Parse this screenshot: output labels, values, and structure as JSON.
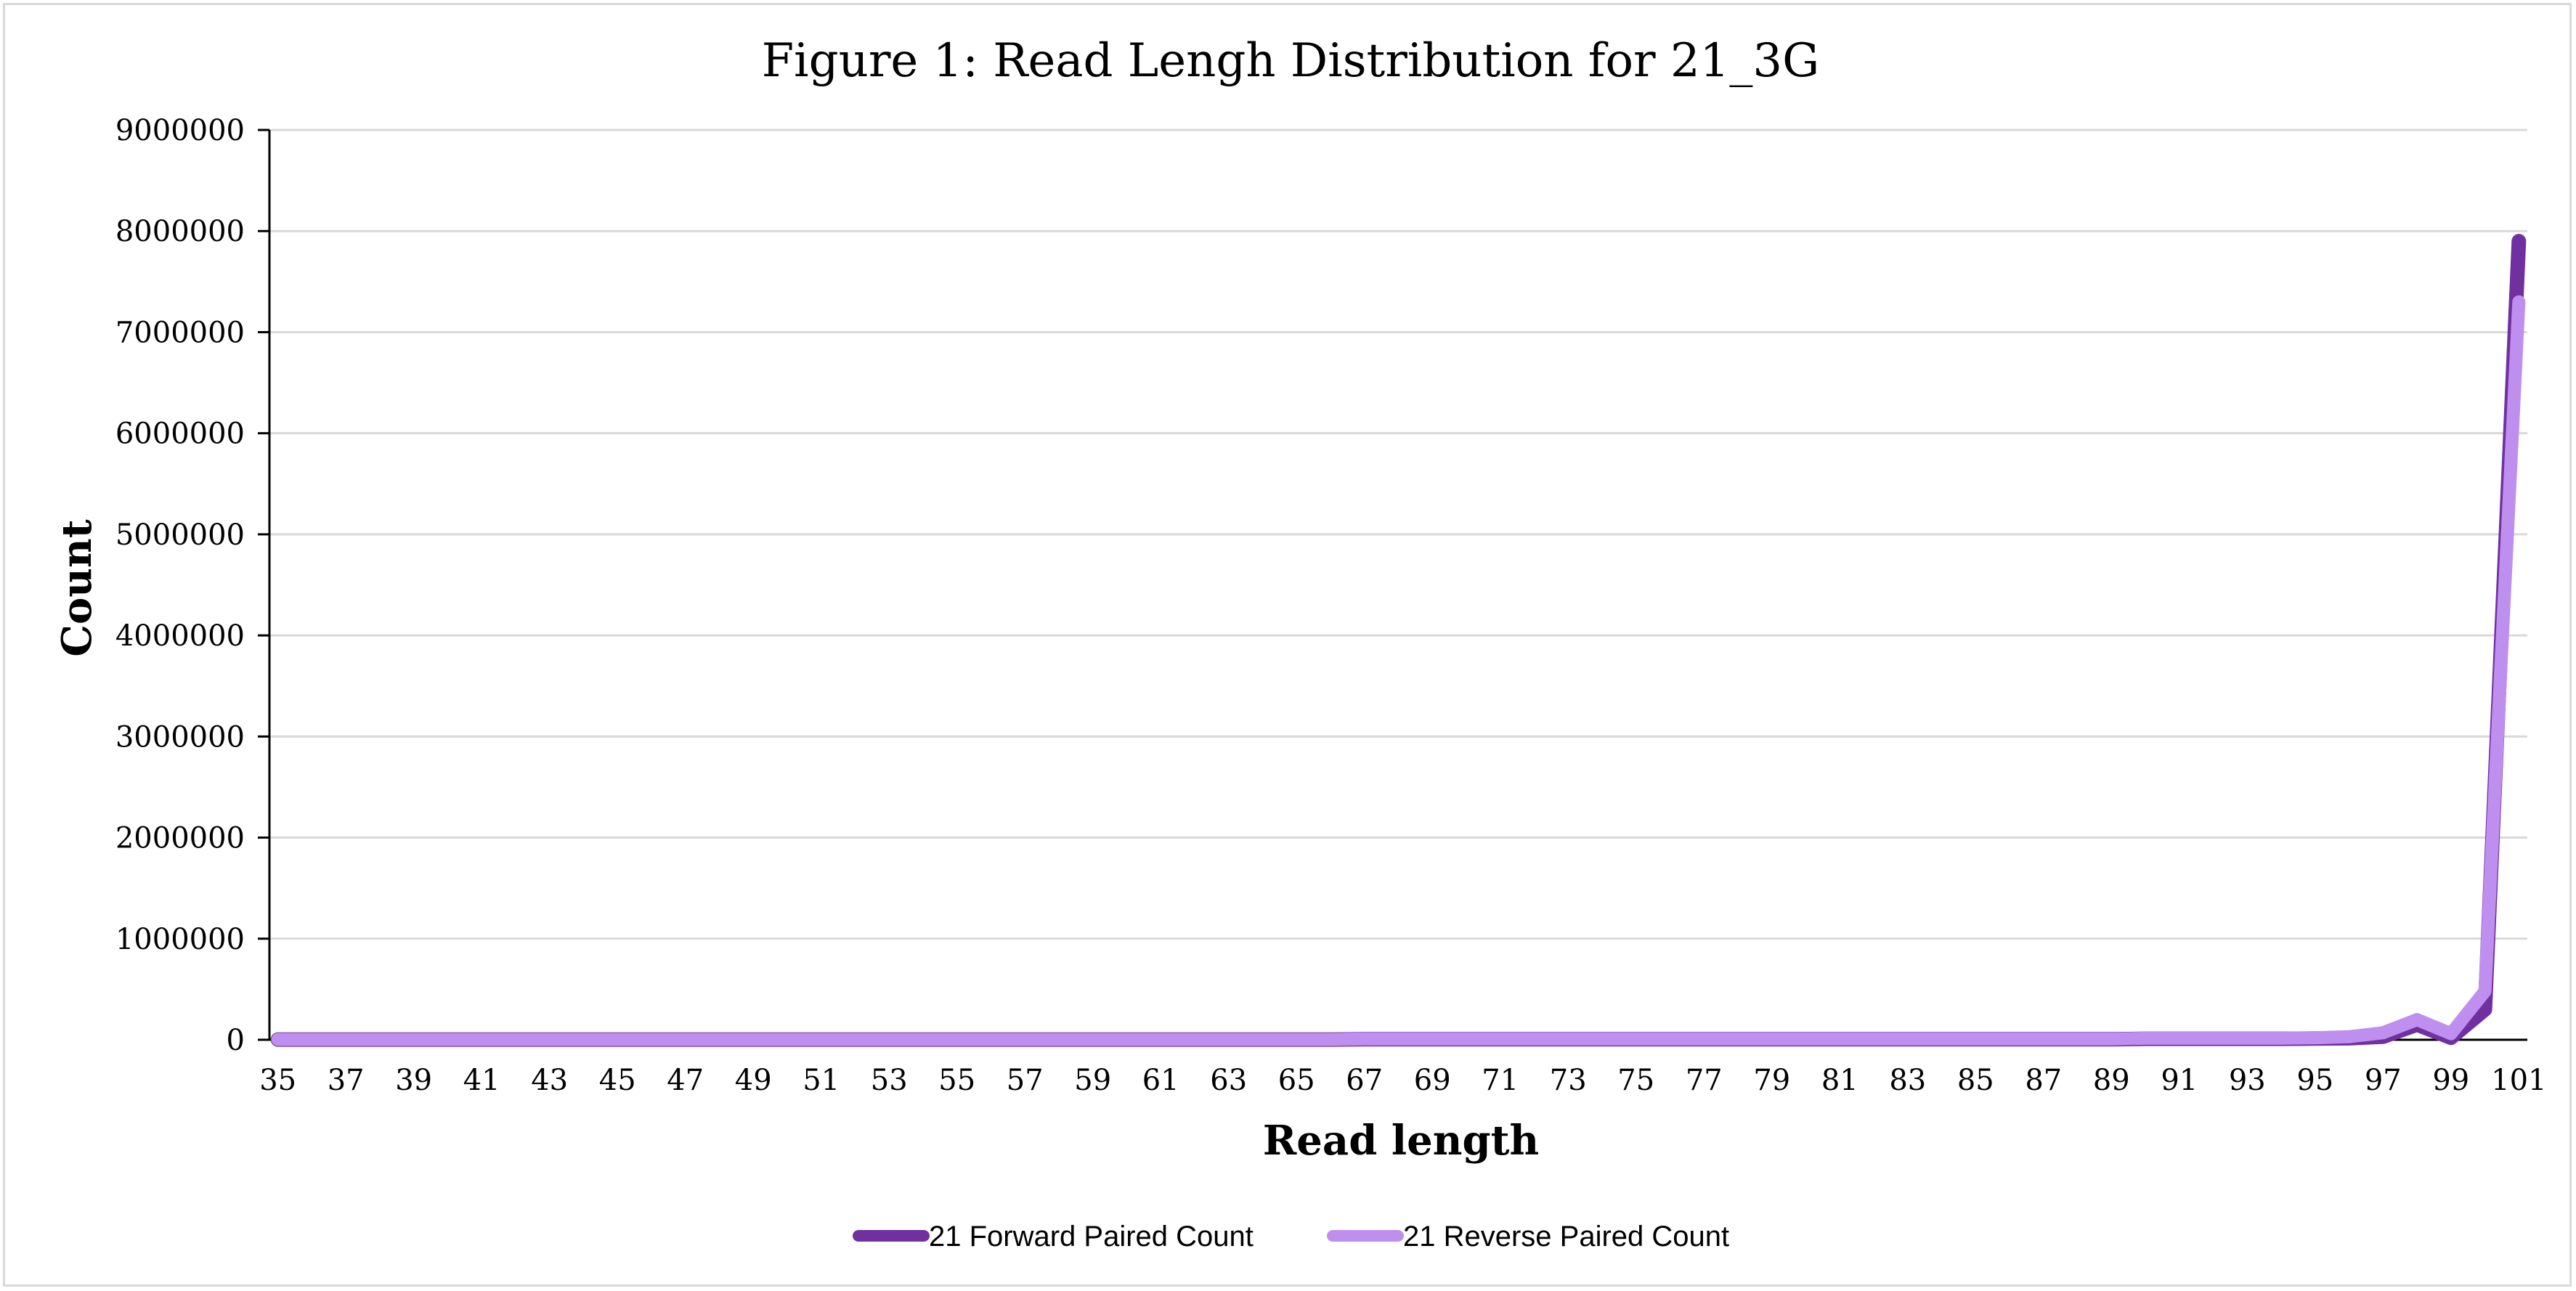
{
  "chart_data": {
    "type": "line",
    "title": "Figure 1: Read Lengh Distribution for 21_3G",
    "xlabel": "Read length",
    "ylabel": "Count",
    "x": [
      35,
      36,
      37,
      38,
      39,
      40,
      41,
      42,
      43,
      44,
      45,
      46,
      47,
      48,
      49,
      50,
      51,
      52,
      53,
      54,
      55,
      56,
      57,
      58,
      59,
      60,
      61,
      62,
      63,
      64,
      65,
      66,
      67,
      68,
      69,
      70,
      71,
      72,
      73,
      74,
      75,
      76,
      77,
      78,
      79,
      80,
      81,
      82,
      83,
      84,
      85,
      86,
      87,
      88,
      89,
      90,
      91,
      92,
      93,
      94,
      95,
      96,
      97,
      98,
      99,
      100,
      101
    ],
    "x_tick_labels": [
      "35",
      "37",
      "39",
      "41",
      "43",
      "45",
      "47",
      "49",
      "51",
      "53",
      "55",
      "57",
      "59",
      "61",
      "63",
      "65",
      "67",
      "69",
      "71",
      "73",
      "75",
      "77",
      "79",
      "81",
      "83",
      "85",
      "87",
      "89",
      "91",
      "93",
      "95",
      "97",
      "99",
      "101"
    ],
    "ylim": [
      0,
      9000000
    ],
    "y_ticks": [
      0,
      1000000,
      2000000,
      3000000,
      4000000,
      5000000,
      6000000,
      7000000,
      8000000,
      9000000
    ],
    "y_tick_labels": [
      "0",
      "1000000",
      "2000000",
      "3000000",
      "4000000",
      "5000000",
      "6000000",
      "7000000",
      "8000000",
      "9000000"
    ],
    "grid": true,
    "legend_position": "bottom",
    "series": [
      {
        "name": "21 Forward Paired Count",
        "color": "#7030a0",
        "values": [
          2000,
          2000,
          2000,
          2000,
          2000,
          2000,
          2000,
          2000,
          2000,
          2000,
          2000,
          2000,
          2000,
          2000,
          2000,
          2000,
          2000,
          2000,
          2000,
          2000,
          2000,
          2000,
          2000,
          2000,
          2000,
          2000,
          2000,
          2000,
          2000,
          2000,
          2000,
          2000,
          5000,
          5000,
          5000,
          5000,
          5000,
          5000,
          5000,
          5000,
          5000,
          5000,
          5000,
          5000,
          5000,
          5000,
          5000,
          5000,
          5000,
          5000,
          5000,
          5000,
          5000,
          5000,
          5000,
          10000,
          10000,
          10000,
          10000,
          10000,
          12000,
          15000,
          30000,
          150000,
          20000,
          300000,
          7900000
        ]
      },
      {
        "name": "21 Reverse Paired Count",
        "color": "#bf8fef",
        "values": [
          3000,
          3000,
          3000,
          3000,
          3000,
          3000,
          3000,
          3000,
          3000,
          3000,
          3000,
          3000,
          3000,
          3000,
          3000,
          3000,
          3000,
          3000,
          3000,
          3000,
          3000,
          3000,
          3000,
          3000,
          3000,
          3000,
          3000,
          3000,
          3000,
          3000,
          3000,
          3000,
          8000,
          8000,
          8000,
          8000,
          8000,
          8000,
          8000,
          8000,
          8000,
          8000,
          8000,
          8000,
          8000,
          8000,
          8000,
          8000,
          8000,
          8000,
          8000,
          8000,
          8000,
          8000,
          8000,
          15000,
          15000,
          15000,
          15000,
          15000,
          20000,
          30000,
          70000,
          200000,
          60000,
          480000,
          7300000
        ]
      }
    ]
  }
}
